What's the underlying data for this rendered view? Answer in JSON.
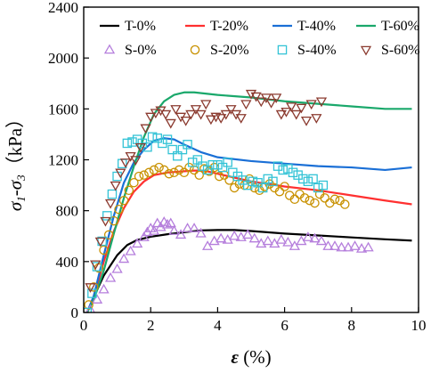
{
  "chart_data": {
    "type": "line",
    "title": "",
    "xlabel_parts": [
      "ε",
      " (%)"
    ],
    "ylabel_parts": [
      "σ",
      "1",
      "-σ",
      "3",
      "（kPa）"
    ],
    "xlim": [
      0,
      10
    ],
    "ylim": [
      0,
      2400
    ],
    "x_ticks": [
      0,
      2,
      4,
      6,
      8,
      10
    ],
    "y_ticks": [
      0,
      400,
      800,
      1200,
      1600,
      2000,
      2400
    ],
    "grid": false,
    "legend_position": "top",
    "series": [
      {
        "name": "T-0%",
        "kind": "line",
        "color": "#000000",
        "x": [
          0.1,
          0.3,
          0.6,
          1.0,
          1.3,
          1.6,
          2.0,
          2.5,
          3.0,
          3.5,
          4.0,
          4.5,
          5.0,
          6.0,
          7.0,
          8.0,
          9.0,
          9.8
        ],
        "y": [
          0,
          120,
          290,
          450,
          530,
          570,
          595,
          615,
          630,
          645,
          648,
          648,
          640,
          620,
          605,
          590,
          575,
          565
        ]
      },
      {
        "name": "T-20%",
        "kind": "line",
        "color": "#ff3030",
        "x": [
          0.1,
          0.3,
          0.6,
          0.9,
          1.2,
          1.5,
          1.8,
          2.1,
          2.5,
          3.0,
          3.3,
          3.6,
          4.0,
          4.5,
          5.0,
          6.0,
          7.0,
          8.0,
          9.0,
          9.8
        ],
        "y": [
          0,
          120,
          400,
          640,
          820,
          950,
          1030,
          1080,
          1100,
          1110,
          1115,
          1115,
          1090,
          1060,
          1030,
          990,
          960,
          920,
          880,
          850
        ]
      },
      {
        "name": "T-40%",
        "kind": "line",
        "color": "#1a6fd6",
        "x": [
          0.1,
          0.3,
          0.6,
          0.9,
          1.2,
          1.5,
          1.8,
          2.1,
          2.4,
          2.7,
          3.0,
          3.5,
          4.0,
          5.0,
          6.0,
          7.0,
          8.0,
          9.0,
          9.8
        ],
        "y": [
          0,
          130,
          450,
          760,
          1020,
          1180,
          1280,
          1350,
          1370,
          1360,
          1320,
          1260,
          1220,
          1190,
          1170,
          1150,
          1140,
          1120,
          1140
        ]
      },
      {
        "name": "T-60%",
        "kind": "line",
        "color": "#1aa86b",
        "x": [
          0.1,
          0.3,
          0.6,
          0.9,
          1.2,
          1.5,
          1.8,
          2.1,
          2.4,
          2.7,
          3.0,
          3.3,
          4.0,
          5.0,
          6.0,
          7.0,
          8.0,
          9.0,
          9.8
        ],
        "y": [
          0,
          100,
          330,
          620,
          900,
          1150,
          1380,
          1560,
          1660,
          1710,
          1730,
          1730,
          1710,
          1690,
          1660,
          1640,
          1620,
          1600,
          1600
        ]
      },
      {
        "name": "S-0%",
        "kind": "marker",
        "marker": "triangle-up",
        "color": "#b57edc",
        "x": [
          0.2,
          0.4,
          0.6,
          0.8,
          1.0,
          1.2,
          1.4,
          1.6,
          1.8,
          1.9,
          2.0,
          2.1,
          2.2,
          2.3,
          2.4,
          2.5,
          2.6,
          2.7,
          2.9,
          3.1,
          3.3,
          3.5,
          3.7,
          3.9,
          4.1,
          4.3,
          4.5,
          4.7,
          4.9,
          5.1,
          5.3,
          5.5,
          5.7,
          5.9,
          6.1,
          6.3,
          6.5,
          6.7,
          6.9,
          7.1,
          7.3,
          7.5,
          7.7,
          7.9,
          8.1,
          8.3,
          8.5
        ],
        "y": [
          20,
          100,
          180,
          270,
          340,
          420,
          480,
          540,
          590,
          630,
          660,
          640,
          700,
          670,
          710,
          690,
          700,
          640,
          610,
          660,
          660,
          620,
          520,
          560,
          580,
          570,
          600,
          590,
          610,
          580,
          540,
          560,
          540,
          570,
          550,
          520,
          560,
          590,
          580,
          560,
          520,
          520,
          510,
          510,
          520,
          500,
          510
        ]
      },
      {
        "name": "S-20%",
        "kind": "marker",
        "marker": "circle",
        "color": "#c89100",
        "x": [
          0.15,
          0.3,
          0.45,
          0.6,
          0.75,
          0.9,
          1.05,
          1.2,
          1.35,
          1.5,
          1.65,
          1.8,
          1.95,
          2.1,
          2.25,
          2.4,
          2.55,
          2.7,
          2.85,
          3.0,
          3.15,
          3.3,
          3.45,
          3.6,
          3.75,
          3.9,
          4.05,
          4.2,
          4.35,
          4.5,
          4.65,
          4.8,
          4.95,
          5.1,
          5.25,
          5.4,
          5.55,
          5.7,
          5.85,
          6.0,
          6.15,
          6.3,
          6.45,
          6.6,
          6.75,
          6.9,
          7.05,
          7.2,
          7.35,
          7.5,
          7.65,
          7.8
        ],
        "y": [
          60,
          200,
          350,
          490,
          610,
          720,
          810,
          880,
          960,
          1020,
          1070,
          1080,
          1100,
          1120,
          1140,
          1120,
          1090,
          1100,
          1120,
          1100,
          1140,
          1120,
          1080,
          1130,
          1110,
          1140,
          1070,
          1080,
          1040,
          980,
          1010,
          1000,
          1050,
          980,
          960,
          990,
          1010,
          980,
          950,
          990,
          920,
          890,
          930,
          900,
          880,
          860,
          930,
          900,
          860,
          890,
          880,
          850
        ]
      },
      {
        "name": "S-40%",
        "kind": "marker",
        "marker": "square",
        "color": "#33c3d6",
        "x": [
          0.1,
          0.25,
          0.4,
          0.55,
          0.7,
          0.85,
          1.0,
          1.15,
          1.3,
          1.45,
          1.6,
          1.75,
          1.9,
          2.05,
          2.2,
          2.35,
          2.5,
          2.65,
          2.8,
          2.95,
          3.1,
          3.25,
          3.4,
          3.55,
          3.7,
          3.85,
          4.0,
          4.15,
          4.3,
          4.45,
          4.6,
          4.75,
          4.9,
          5.05,
          5.2,
          5.35,
          5.5,
          5.65,
          5.8,
          5.95,
          6.1,
          6.25,
          6.4,
          6.55,
          6.7,
          6.85,
          7.0,
          7.15
        ],
        "y": [
          0,
          150,
          360,
          560,
          760,
          930,
          1070,
          1170,
          1330,
          1340,
          1360,
          1330,
          1300,
          1380,
          1370,
          1330,
          1360,
          1280,
          1230,
          1280,
          1320,
          1180,
          1200,
          1150,
          1120,
          1160,
          1160,
          1140,
          1180,
          1100,
          1070,
          1040,
          1000,
          1030,
          1020,
          980,
          1050,
          1030,
          1150,
          1120,
          1130,
          1100,
          1080,
          1050,
          1030,
          1050,
          980,
          1000
        ]
      },
      {
        "name": "S-60%",
        "kind": "marker",
        "marker": "triangle-down",
        "color": "#8b3a2f",
        "x": [
          0.2,
          0.35,
          0.5,
          0.65,
          0.8,
          0.95,
          1.1,
          1.25,
          1.4,
          1.55,
          1.7,
          1.85,
          2.0,
          2.15,
          2.3,
          2.45,
          2.6,
          2.75,
          2.9,
          3.05,
          3.2,
          3.35,
          3.5,
          3.65,
          3.8,
          3.95,
          4.1,
          4.25,
          4.4,
          4.55,
          4.7,
          4.85,
          5.0,
          5.15,
          5.3,
          5.45,
          5.6,
          5.75,
          5.9,
          6.05,
          6.2,
          6.35,
          6.5,
          6.65,
          6.8,
          6.95,
          7.1
        ],
        "y": [
          200,
          380,
          560,
          720,
          860,
          1000,
          1100,
          1180,
          1230,
          1200,
          1300,
          1450,
          1540,
          1570,
          1590,
          1560,
          1490,
          1600,
          1540,
          1510,
          1560,
          1600,
          1560,
          1640,
          1520,
          1540,
          1530,
          1560,
          1600,
          1560,
          1530,
          1640,
          1720,
          1700,
          1660,
          1690,
          1650,
          1690,
          1560,
          1580,
          1620,
          1560,
          1610,
          1510,
          1640,
          1530,
          1660
        ]
      }
    ]
  }
}
